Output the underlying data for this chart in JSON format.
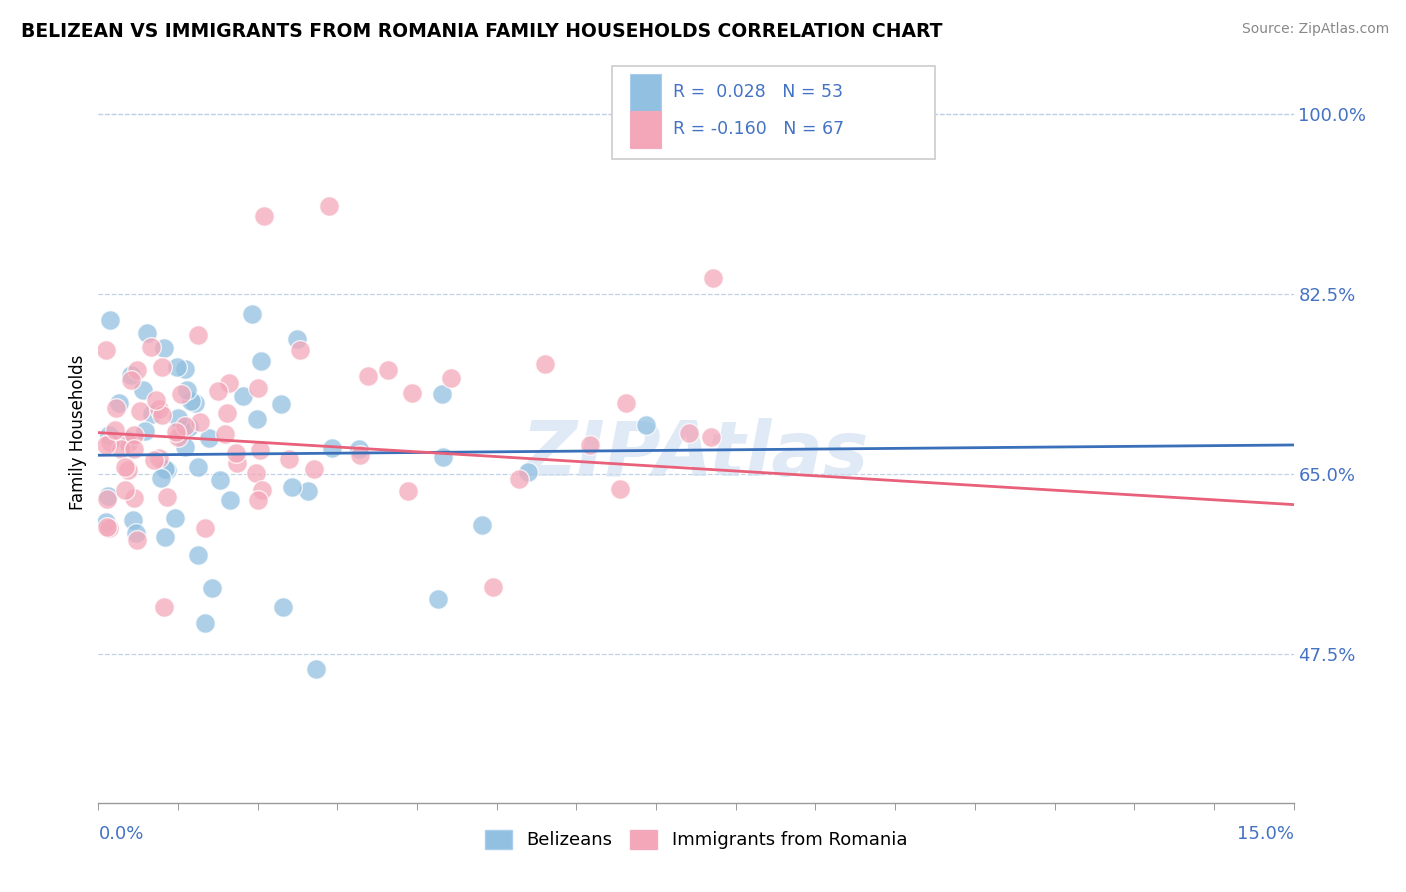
{
  "title": "BELIZEAN VS IMMIGRANTS FROM ROMANIA FAMILY HOUSEHOLDS CORRELATION CHART",
  "source": "Source: ZipAtlas.com",
  "ylabel": "Family Households",
  "ytick_labels": [
    "47.5%",
    "65.0%",
    "82.5%",
    "100.0%"
  ],
  "ytick_values": [
    0.475,
    0.65,
    0.825,
    1.0
  ],
  "xmin": 0.0,
  "xmax": 0.15,
  "ymin": 0.33,
  "ymax": 1.05,
  "legend_labels": [
    "Belizeans",
    "Immigrants from Romania"
  ],
  "blue_color": "#92c0e0",
  "pink_color": "#f4a7b9",
  "blue_line_color": "#3a6fba",
  "pink_line_color": "#e8607a",
  "watermark": "ZIPAtlas",
  "blue_R": 0.028,
  "blue_N": 53,
  "pink_R": -0.16,
  "pink_N": 67,
  "blue_line_x0": 0.0,
  "blue_line_y0": 0.668,
  "blue_line_x1": 0.15,
  "blue_line_y1": 0.678,
  "pink_line_x0": 0.0,
  "pink_line_y0": 0.69,
  "pink_line_x1": 0.15,
  "pink_line_y1": 0.62
}
